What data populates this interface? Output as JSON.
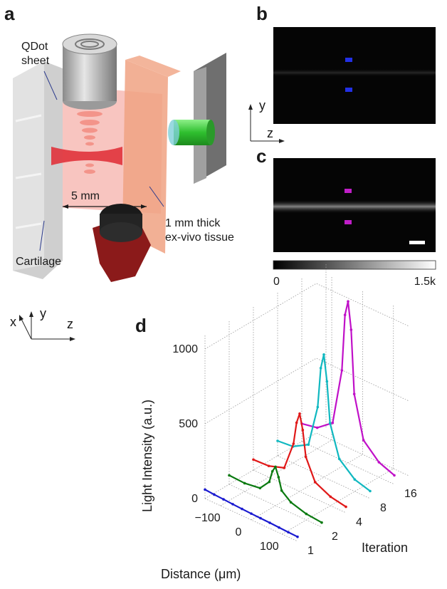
{
  "panels": {
    "a": "a",
    "b": "b",
    "c": "c",
    "d": "d"
  },
  "panel_a": {
    "qdot_line1": "QDot",
    "qdot_line2": "sheet",
    "distance_label": "5 mm",
    "tissue_line1": "1 mm thick",
    "tissue_line2": "ex-vivo tissue",
    "cartilage_label": "Cartilage"
  },
  "axes_yz": {
    "y": "y",
    "z": "z"
  },
  "axes_xyz": {
    "x": "x",
    "y": "y",
    "z": "z"
  },
  "colorbar": {
    "min": "0",
    "max": "1.5k"
  },
  "marker_colors": {
    "b": "#2230e6",
    "c": "#c01ec8"
  },
  "chart_data": {
    "type": "line",
    "subtype": "3d-waterfall",
    "xlabel": "Distance (μm)",
    "ylabel": "Iteration",
    "zlabel": "Light Intensity (a.u.)",
    "x_ticks": [
      "−100",
      "0",
      "100"
    ],
    "iteration_ticks": [
      "1",
      "2",
      "4",
      "8",
      "16"
    ],
    "z_ticks": [
      "0",
      "500",
      "1000"
    ],
    "xlim": [
      -150,
      150
    ],
    "zlim": [
      0,
      1100
    ],
    "grid": true,
    "series": [
      {
        "iteration": 1,
        "color": "#1a1ad0",
        "x": [
          -150,
          -120,
          -90,
          -60,
          -30,
          0,
          30,
          60,
          90,
          120,
          150
        ],
        "y": [
          60,
          55,
          52,
          48,
          45,
          42,
          40,
          38,
          35,
          32,
          30
        ]
      },
      {
        "iteration": 2,
        "color": "#0a7a10",
        "x": [
          -150,
          -100,
          -50,
          -20,
          -10,
          0,
          10,
          20,
          50,
          100,
          150
        ],
        "y": [
          60,
          55,
          70,
          140,
          220,
          260,
          200,
          120,
          70,
          40,
          30
        ]
      },
      {
        "iteration": 4,
        "color": "#e01818",
        "x": [
          -150,
          -100,
          -50,
          -20,
          -10,
          0,
          10,
          20,
          50,
          100,
          150
        ],
        "y": [
          70,
          75,
          110,
          300,
          450,
          520,
          420,
          250,
          110,
          60,
          40
        ]
      },
      {
        "iteration": 8,
        "color": "#10b8c0",
        "x": [
          -150,
          -100,
          -50,
          -20,
          -10,
          0,
          10,
          20,
          50,
          100,
          150
        ],
        "y": [
          100,
          110,
          170,
          450,
          720,
          820,
          650,
          380,
          170,
          80,
          50
        ]
      },
      {
        "iteration": 16,
        "color": "#c010c8",
        "x": [
          -150,
          -100,
          -50,
          -20,
          -10,
          0,
          10,
          20,
          50,
          100,
          150
        ],
        "y": [
          120,
          140,
          220,
          600,
          980,
          1080,
          900,
          480,
          200,
          100,
          60
        ]
      }
    ]
  }
}
